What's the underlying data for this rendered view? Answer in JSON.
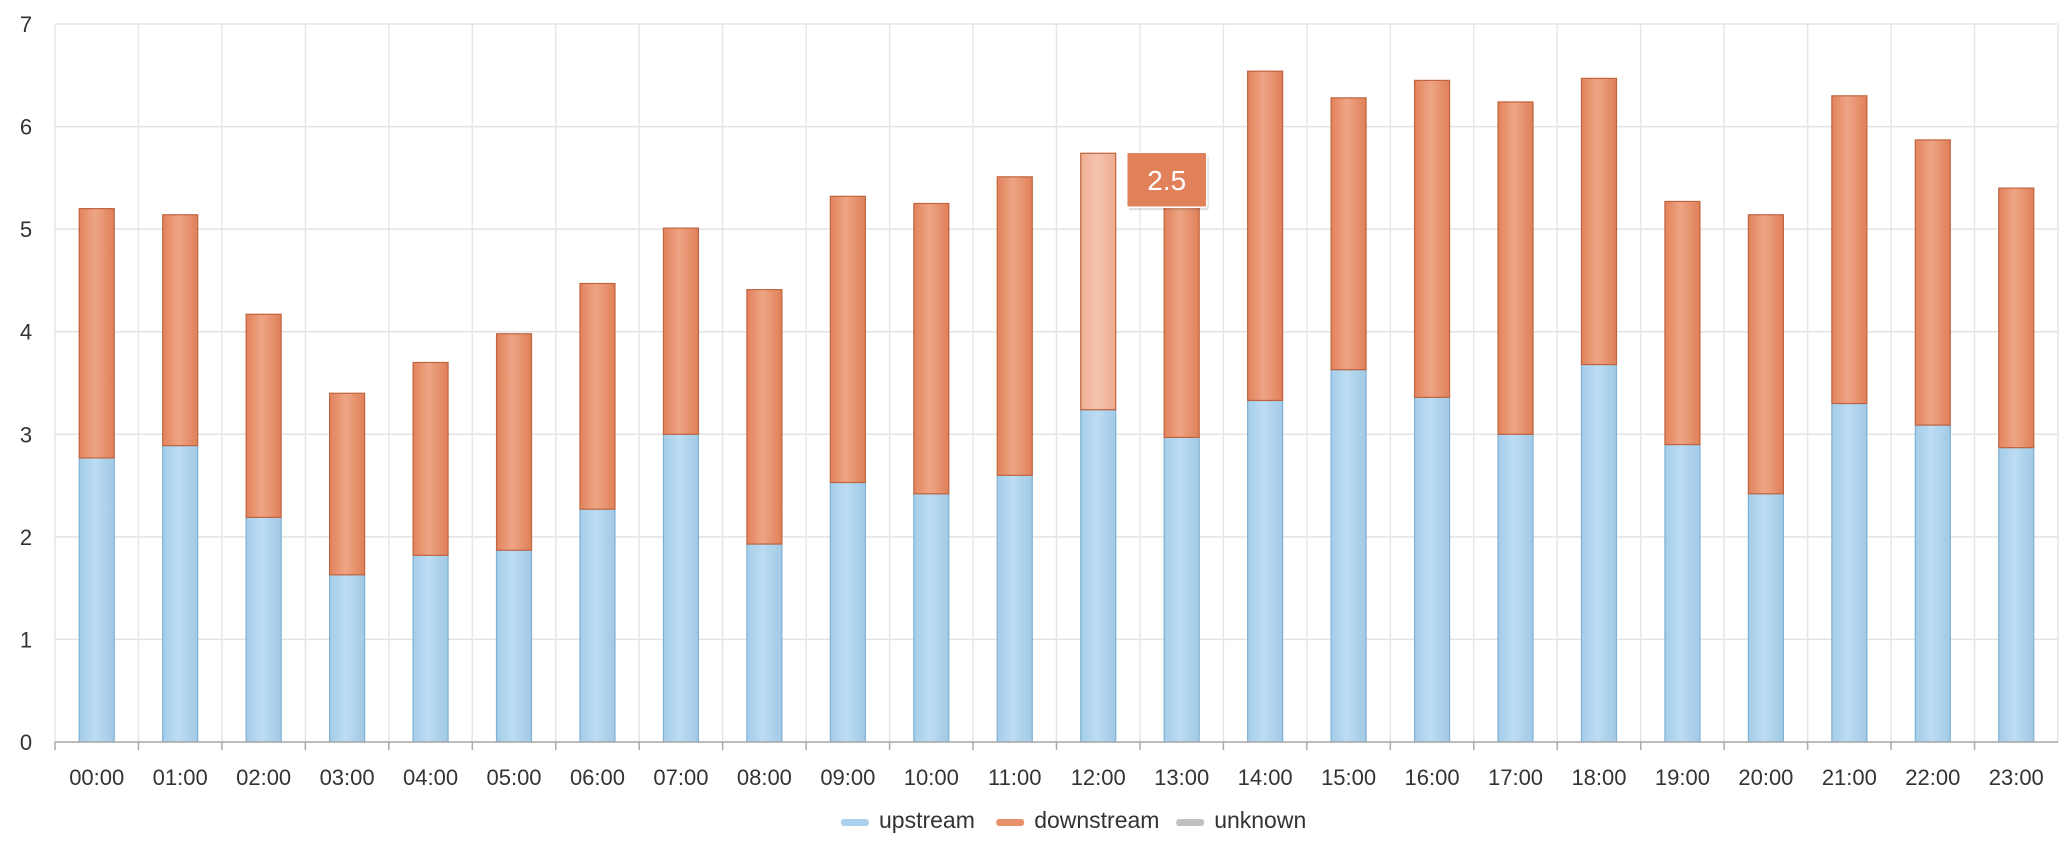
{
  "chart_data": {
    "type": "bar",
    "stacked": true,
    "categories": [
      "00:00",
      "01:00",
      "02:00",
      "03:00",
      "04:00",
      "05:00",
      "06:00",
      "07:00",
      "08:00",
      "09:00",
      "10:00",
      "11:00",
      "12:00",
      "13:00",
      "14:00",
      "15:00",
      "16:00",
      "17:00",
      "18:00",
      "19:00",
      "20:00",
      "21:00",
      "22:00",
      "23:00"
    ],
    "series": [
      {
        "name": "upstream",
        "color": "#a9d0ec",
        "values": [
          2.77,
          2.89,
          2.19,
          1.63,
          1.82,
          1.87,
          2.27,
          3.0,
          1.93,
          2.53,
          2.42,
          2.6,
          3.24,
          2.97,
          3.33,
          3.63,
          3.36,
          3.0,
          3.68,
          2.9,
          2.42,
          3.3,
          3.09,
          2.87
        ]
      },
      {
        "name": "downstream",
        "color": "#e8906a",
        "values": [
          2.43,
          2.25,
          1.98,
          1.77,
          1.88,
          2.11,
          2.2,
          2.01,
          2.48,
          2.79,
          2.83,
          2.91,
          2.5,
          2.43,
          3.21,
          2.65,
          3.09,
          3.24,
          2.79,
          2.37,
          2.72,
          3.0,
          2.78,
          2.53
        ]
      },
      {
        "name": "unknown",
        "color": "#c0c0c0",
        "values": [
          0,
          0,
          0,
          0,
          0,
          0,
          0,
          0,
          0,
          0,
          0,
          0,
          0,
          0,
          0,
          0,
          0,
          0,
          0,
          0,
          0,
          0,
          0,
          0
        ]
      }
    ],
    "yticks": [
      "0",
      "1",
      "2",
      "3",
      "4",
      "5",
      "6",
      "7"
    ],
    "ylim": [
      0,
      7
    ],
    "grid": true,
    "legend": "bottom-center",
    "tooltip": {
      "text": "2.5",
      "category_index": 12,
      "series": "downstream"
    }
  }
}
